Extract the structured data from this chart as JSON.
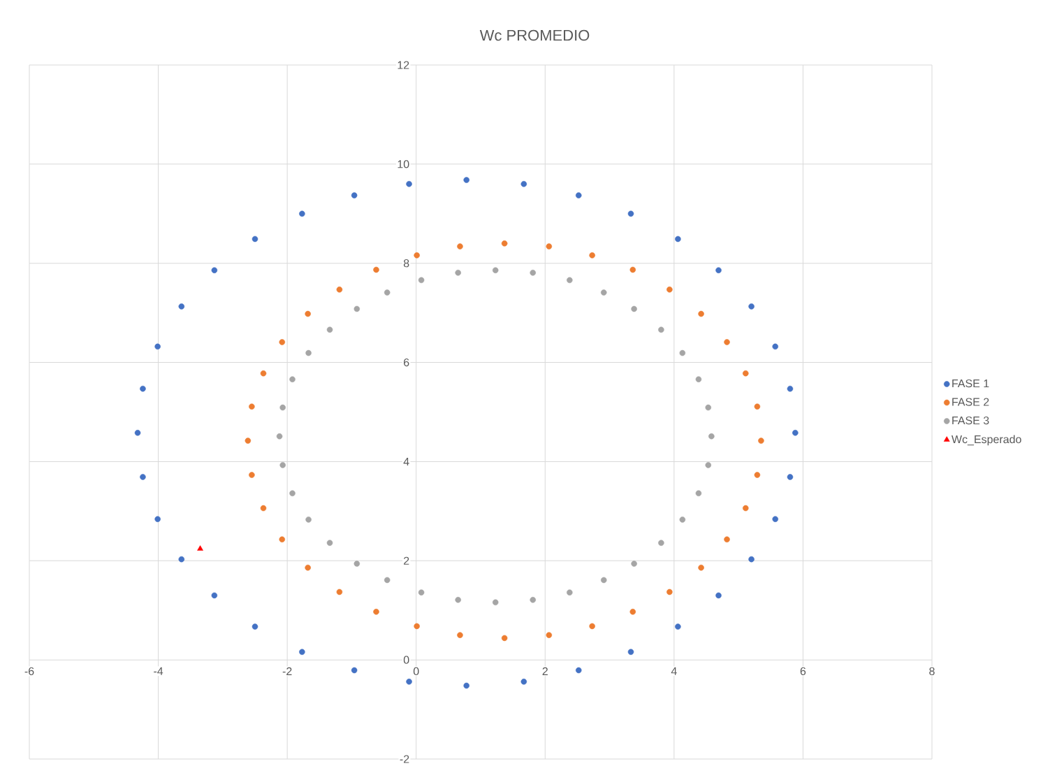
{
  "chart_data": {
    "type": "scatter",
    "title": "Wc PROMEDIO",
    "xlim": [
      -6,
      8
    ],
    "ylim": [
      -2,
      12
    ],
    "xticks": [
      -6,
      -4,
      -2,
      0,
      2,
      4,
      6,
      8
    ],
    "yticks": [
      -2,
      0,
      2,
      4,
      6,
      8,
      10,
      12
    ],
    "grid": true,
    "legend": "right",
    "marker": "circle",
    "series": [
      {
        "name": "FASE 1",
        "color": "#4472c4",
        "x": [
          5.88,
          5.8,
          5.57,
          5.2,
          4.69,
          4.06,
          3.33,
          2.52,
          1.67,
          0.78,
          -0.11,
          -0.96,
          -1.77,
          -2.5,
          -3.13,
          -3.64,
          -4.01,
          -4.24,
          -4.32,
          -4.24,
          -4.01,
          -3.64,
          -3.13,
          -2.5,
          -1.77,
          -0.96,
          -0.11,
          0.78,
          1.67,
          2.52,
          3.33,
          4.06,
          4.69,
          5.2,
          5.57,
          5.8
        ],
        "values": [
          4.58,
          5.47,
          6.32,
          7.13,
          7.86,
          8.49,
          9.0,
          9.37,
          9.6,
          9.68,
          9.6,
          9.37,
          9.0,
          8.49,
          7.86,
          7.13,
          6.32,
          5.47,
          4.58,
          3.69,
          2.84,
          2.03,
          1.3,
          0.67,
          0.16,
          -0.21,
          -0.44,
          -0.52,
          -0.44,
          -0.21,
          0.16,
          0.67,
          1.3,
          2.03,
          2.84,
          3.69
        ]
      },
      {
        "name": "FASE 2",
        "color": "#ed7d31",
        "x": [
          5.35,
          5.29,
          5.11,
          4.82,
          4.42,
          3.93,
          3.36,
          2.73,
          2.06,
          1.37,
          0.68,
          0.01,
          -0.62,
          -1.19,
          -1.68,
          -2.08,
          -2.37,
          -2.55,
          -2.61,
          -2.55,
          -2.37,
          -2.08,
          -1.68,
          -1.19,
          -0.62,
          0.01,
          0.68,
          1.37,
          2.06,
          2.73,
          3.36,
          3.93,
          4.42,
          4.82,
          5.11,
          5.29
        ],
        "values": [
          4.42,
          5.11,
          5.78,
          6.41,
          6.98,
          7.47,
          7.87,
          8.16,
          8.34,
          8.4,
          8.34,
          8.16,
          7.87,
          7.47,
          6.98,
          6.41,
          5.78,
          5.11,
          4.42,
          3.73,
          3.06,
          2.43,
          1.86,
          1.37,
          0.97,
          0.68,
          0.5,
          0.44,
          0.5,
          0.68,
          0.97,
          1.37,
          1.86,
          2.43,
          3.06,
          3.73
        ]
      },
      {
        "name": "FASE 3",
        "color": "#a5a5a5",
        "x": [
          4.58,
          4.53,
          4.38,
          4.13,
          3.8,
          3.38,
          2.91,
          2.38,
          1.81,
          1.23,
          0.65,
          0.08,
          -0.45,
          -0.92,
          -1.34,
          -1.67,
          -1.92,
          -2.07,
          -2.12,
          -2.07,
          -1.92,
          -1.67,
          -1.34,
          -0.92,
          -0.45,
          0.08,
          0.65,
          1.23,
          1.81,
          2.38,
          2.91,
          3.38,
          3.8,
          4.13,
          4.38,
          4.53
        ],
        "values": [
          4.51,
          5.09,
          5.66,
          6.19,
          6.66,
          7.08,
          7.41,
          7.66,
          7.81,
          7.86,
          7.81,
          7.66,
          7.41,
          7.08,
          6.66,
          6.19,
          5.66,
          5.09,
          4.51,
          3.93,
          3.36,
          2.83,
          2.36,
          1.94,
          1.61,
          1.36,
          1.21,
          1.16,
          1.21,
          1.36,
          1.61,
          1.94,
          2.36,
          2.83,
          3.36,
          3.93
        ]
      },
      {
        "name": "Wc_Esperado",
        "color": "#ff0000",
        "marker": "triangle",
        "x": [
          -3.35
        ],
        "values": [
          2.24
        ]
      }
    ]
  }
}
